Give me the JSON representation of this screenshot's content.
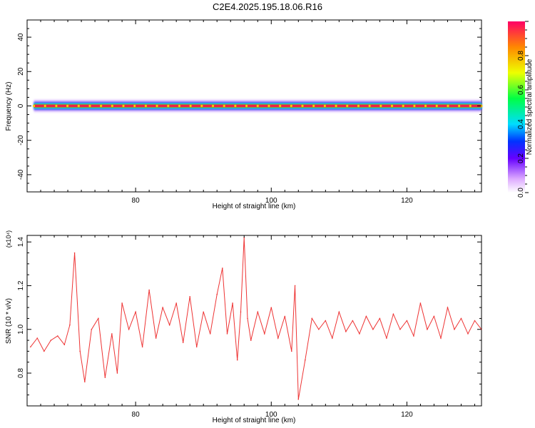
{
  "title": "C2E4.2025.195.18.06.R16",
  "chart_data": [
    {
      "type": "heatmap",
      "xlabel": "Height of straight line (km)",
      "ylabel": "Frequency (Hz)",
      "xlim": [
        64,
        131
      ],
      "ylim": [
        -50,
        50
      ],
      "x_ticks": [
        "80",
        "100",
        "120"
      ],
      "y_ticks": [
        "40",
        "20",
        "0",
        "-20",
        "-40"
      ],
      "colorbar": {
        "label": "Normalized spectral amplitude",
        "range": [
          0.0,
          1.0
        ],
        "ticks": [
          "0.0",
          "0.2",
          "0.4",
          "0.6",
          "0.8"
        ]
      },
      "ridge": {
        "frequency": 0,
        "x_start": 65,
        "x_end": 131
      }
    },
    {
      "type": "line",
      "xlabel": "Height of straight line (km)",
      "ylabel": "SNR (10 * v/v)",
      "y_multiplier": "(x10⁴)",
      "xlim": [
        64,
        131
      ],
      "ylim": [
        0.65,
        1.43
      ],
      "x_ticks": [
        "80",
        "100",
        "120"
      ],
      "y_ticks": [
        "1.4",
        "1.2",
        "1.0",
        "0.8"
      ],
      "color": "#ee3333",
      "series": [
        {
          "x": [
            64.5,
            65.5,
            66.5,
            67.5,
            68.5,
            69.5,
            70.3,
            71.0,
            71.8,
            72.5,
            73.5,
            74.5,
            75.5,
            76.5,
            77.3,
            78.0,
            79.0,
            80.0,
            81.0,
            82.0,
            83.0,
            84.0,
            85.0,
            86.0,
            87.0,
            88.0,
            89.0,
            90.0,
            91.0,
            92.0,
            92.8,
            93.5,
            94.3,
            95.0,
            95.5,
            96.0,
            96.5,
            97.0,
            98.0,
            99.0,
            100.0,
            101.0,
            102.0,
            103.0,
            103.5,
            104.0,
            105.0,
            106.0,
            107.0,
            108.0,
            109.0,
            110.0,
            111.0,
            112.0,
            113.0,
            114.0,
            115.0,
            116.0,
            117.0,
            118.0,
            119.0,
            120.0,
            121.0,
            122.0,
            123.0,
            124.0,
            125.0,
            126.0,
            127.0,
            128.0,
            129.0,
            130.0,
            131.0
          ],
          "values": [
            0.92,
            0.96,
            0.9,
            0.95,
            0.97,
            0.93,
            1.02,
            1.35,
            0.9,
            0.76,
            1.0,
            1.05,
            0.78,
            0.98,
            0.8,
            1.12,
            1.0,
            1.08,
            0.92,
            1.18,
            0.96,
            1.1,
            1.02,
            1.12,
            0.94,
            1.15,
            0.92,
            1.08,
            0.98,
            1.16,
            1.28,
            0.98,
            1.12,
            0.86,
            1.08,
            1.42,
            1.05,
            0.95,
            1.08,
            0.98,
            1.1,
            0.96,
            1.06,
            0.9,
            1.2,
            0.68,
            0.86,
            1.05,
            1.0,
            1.04,
            0.96,
            1.08,
            0.99,
            1.04,
            0.98,
            1.06,
            1.0,
            1.05,
            0.96,
            1.07,
            1.0,
            1.04,
            0.97,
            1.12,
            1.0,
            1.06,
            0.96,
            1.1,
            1.0,
            1.05,
            0.98,
            1.04,
            1.0
          ]
        }
      ]
    }
  ]
}
